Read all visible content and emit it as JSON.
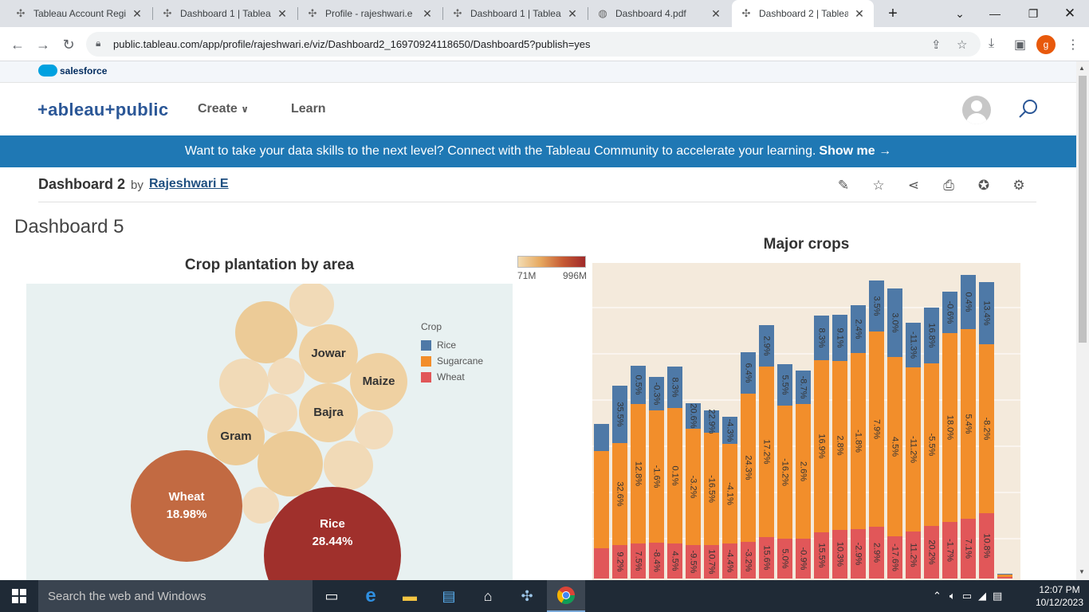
{
  "browser": {
    "tabs": [
      {
        "title": "Tableau Account Regi",
        "icon": "tableau-icon",
        "active": false
      },
      {
        "title": "Dashboard 1 | Tableau",
        "icon": "tableau-icon",
        "active": false
      },
      {
        "title": "Profile - rajeshwari.e",
        "icon": "tableau-icon",
        "active": false
      },
      {
        "title": "Dashboard 1 | Tableau",
        "icon": "tableau-icon",
        "active": false
      },
      {
        "title": "Dashboard 4.pdf",
        "icon": "globe-icon",
        "active": false
      },
      {
        "title": "Dashboard 2 | Tableau",
        "icon": "tableau-icon",
        "active": true
      }
    ],
    "url": "public.tableau.com/app/profile/rajeshwari.e/viz/Dashboard2_16970924118650/Dashboard5?publish=yes",
    "profile_initial": "g"
  },
  "salesforce": {
    "label": "salesforce"
  },
  "header": {
    "logo": "+ableau+public",
    "nav": {
      "create": "Create",
      "learn": "Learn"
    }
  },
  "banner": {
    "text": "Want to take your data skills to the next level? Connect with the Tableau Community to accelerate your learning.",
    "cta": "Show me →"
  },
  "viz": {
    "title": "Dashboard 2",
    "by": "by",
    "author": "Rajeshwari E"
  },
  "dashboard": {
    "title": "Dashboard 5",
    "bubble_title": "Crop plantation by area",
    "major_title": "Major crops",
    "color_legend": {
      "min": "71M",
      "max": "996M"
    },
    "crop_legend": {
      "title": "Crop",
      "items": [
        {
          "label": "Rice",
          "color": "#4e79a7"
        },
        {
          "label": "Sugarcane",
          "color": "#f28e2b"
        },
        {
          "label": "Wheat",
          "color": "#e15759"
        }
      ]
    },
    "bubbles": [
      {
        "label": "Rice",
        "value": "28.44%"
      },
      {
        "label": "Wheat",
        "value": "18.98%"
      },
      {
        "label": "Gram",
        "value": ""
      },
      {
        "label": "Bajra",
        "value": ""
      },
      {
        "label": "Jowar",
        "value": ""
      },
      {
        "label": "Maize",
        "value": ""
      }
    ]
  },
  "chart_data": {
    "type": "bar",
    "title": "Major crops",
    "stacked": true,
    "series": [
      {
        "name": "Wheat",
        "color": "#e15759",
        "labels": [
          "",
          "9.2%",
          "7.5%",
          "-8.4%",
          "4.5%",
          "-9.5%",
          "10.7%",
          "-4.4%",
          "-3.2%",
          "15.6%",
          "5.0%",
          "-0.9%",
          "15.5%",
          "10.3%",
          "-2.9%",
          "2.9%",
          "-17.6%",
          "11.2%",
          "20.2%",
          "-1.7%",
          "7.1%",
          "10.8%",
          ""
        ]
      },
      {
        "name": "Sugarcane",
        "color": "#f28e2b",
        "labels": [
          "",
          "32.6%",
          "12.8%",
          "-1.6%",
          "0.1%",
          "-3.2%",
          "-16.5%",
          "-4.1%",
          "24.3%",
          "17.2%",
          "-16.2%",
          "2.6%",
          "16.9%",
          "2.8%",
          "-1.8%",
          "7.9%",
          "4.5%",
          "-11.2%",
          "-5.5%",
          "18.0%",
          "5.4%",
          "-8.2%",
          ""
        ]
      },
      {
        "name": "Rice",
        "color": "#4e79a7",
        "labels": [
          "",
          "35.5%",
          "0.5%",
          "-0.3%",
          "8.3%",
          "20.6%",
          "22.9%",
          "-4.3%",
          "6.4%",
          "2.9%",
          "5.5%",
          "-8.7%",
          "8.3%",
          "9.1%",
          "2.4%",
          "3.5%",
          "3.0%",
          "-11.3%",
          "16.8%",
          "-0.6%",
          "0.4%",
          "13.4%",
          ""
        ]
      }
    ]
  },
  "taskbar": {
    "search_placeholder": "Search the web and Windows",
    "time": "12:07 PM",
    "date": "10/12/2023"
  }
}
